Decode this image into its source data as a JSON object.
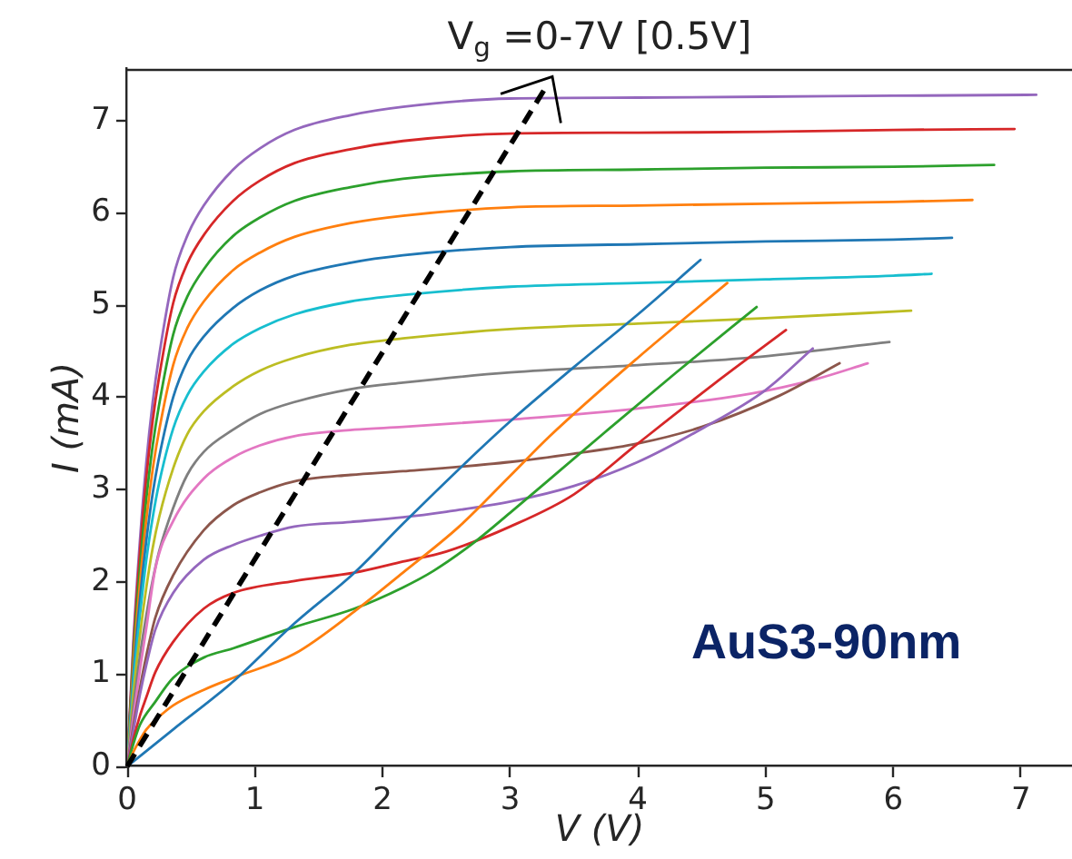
{
  "chart_data": {
    "type": "line",
    "title": "V$_{g}$ =0-7V [0.5V]",
    "xlabel": "V (V)",
    "ylabel": "I (mA)",
    "annotations": [
      "AuS3-90nm"
    ],
    "xlim": [
      0,
      7.4
    ],
    "ylim": [
      0,
      7.56
    ],
    "xticks": [
      0,
      1,
      2,
      3,
      4,
      5,
      6,
      7
    ],
    "yticks": [
      0,
      1,
      2,
      3,
      4,
      5,
      6,
      7
    ],
    "grid": false,
    "legend": false,
    "series": [
      {
        "color": "#1f77b4",
        "x": [
          0,
          0.36,
          0.83,
          1.31,
          1.78,
          2.16,
          2.65,
          3,
          3.5,
          4,
          4.49
        ],
        "values": [
          0,
          0.4,
          0.92,
          1.55,
          2.1,
          2.63,
          3.29,
          3.74,
          4.33,
          4.9,
          5.49
        ]
      },
      {
        "color": "#ff7f0e",
        "x": [
          0,
          0.05,
          0.08,
          0.15,
          0.22,
          0.36,
          0.6,
          0.83,
          1.31,
          1.78,
          2.16,
          2.6,
          3,
          3.31,
          4,
          4.7
        ],
        "values": [
          0,
          0.16,
          0.24,
          0.4,
          0.5,
          0.66,
          0.83,
          0.96,
          1.22,
          1.68,
          2.1,
          2.6,
          3.15,
          3.58,
          4.43,
          5.24
        ]
      },
      {
        "color": "#2ca02c",
        "x": [
          0,
          0.05,
          0.1,
          0.22,
          0.36,
          0.6,
          0.83,
          1.31,
          1.78,
          2.16,
          2.4,
          2.72,
          3,
          3.4,
          3.74,
          4.3,
          4.93
        ],
        "values": [
          0,
          0.25,
          0.45,
          0.7,
          0.96,
          1.18,
          1.28,
          1.51,
          1.71,
          1.94,
          2.12,
          2.43,
          2.75,
          3.22,
          3.62,
          4.27,
          4.98
        ]
      },
      {
        "color": "#d62728",
        "x": [
          0,
          0.05,
          0.1,
          0.15,
          0.22,
          0.36,
          0.6,
          0.83,
          1.31,
          1.78,
          2.16,
          2.5,
          3,
          3.5,
          4,
          4.6,
          5.16
        ],
        "values": [
          0,
          0.3,
          0.55,
          0.75,
          1.02,
          1.35,
          1.71,
          1.88,
          2.01,
          2.1,
          2.22,
          2.33,
          2.6,
          2.95,
          3.5,
          4.15,
          4.73
        ]
      },
      {
        "color": "#9467bd",
        "x": [
          0,
          0.05,
          0.1,
          0.15,
          0.22,
          0.36,
          0.6,
          0.83,
          1.04,
          1.31,
          1.75,
          2.16,
          2.5,
          3,
          3.5,
          4,
          4.5,
          5,
          5.37
        ],
        "values": [
          0,
          0.4,
          0.78,
          1.1,
          1.48,
          1.88,
          2.24,
          2.4,
          2.5,
          2.6,
          2.65,
          2.7,
          2.76,
          2.87,
          3.04,
          3.3,
          3.66,
          4.08,
          4.53
        ]
      },
      {
        "color": "#8c564b",
        "x": [
          0,
          0.05,
          0.1,
          0.15,
          0.22,
          0.36,
          0.6,
          0.83,
          1.04,
          1.31,
          1.75,
          2.16,
          3,
          3.5,
          4,
          4.5,
          5.11,
          5.58
        ],
        "values": [
          0,
          0.45,
          0.85,
          1.2,
          1.61,
          2.07,
          2.56,
          2.83,
          2.97,
          3.09,
          3.16,
          3.2,
          3.3,
          3.39,
          3.5,
          3.68,
          4.02,
          4.37
        ]
      },
      {
        "color": "#e377c2",
        "x": [
          0,
          0.05,
          0.1,
          0.15,
          0.22,
          0.36,
          0.6,
          0.83,
          1.04,
          1.31,
          1.78,
          2.16,
          3,
          4,
          4.88,
          5.4,
          5.8
        ],
        "values": [
          0,
          0.55,
          1.05,
          1.5,
          2.14,
          2.66,
          3.12,
          3.35,
          3.48,
          3.58,
          3.65,
          3.68,
          3.76,
          3.88,
          4.04,
          4.2,
          4.37
        ]
      },
      {
        "color": "#7f7f7f",
        "x": [
          0,
          0.05,
          0.1,
          0.15,
          0.2,
          0.25,
          0.36,
          0.47,
          0.6,
          0.83,
          1.04,
          1.31,
          1.75,
          2.16,
          3,
          4,
          4.88,
          5.97
        ],
        "values": [
          0,
          0.66,
          1.2,
          1.64,
          2.02,
          2.33,
          2.8,
          3.16,
          3.41,
          3.65,
          3.82,
          3.95,
          4.09,
          4.16,
          4.27,
          4.35,
          4.43,
          4.6
        ]
      },
      {
        "color": "#bcbd22",
        "x": [
          0,
          0.05,
          0.1,
          0.15,
          0.2,
          0.25,
          0.36,
          0.47,
          0.6,
          0.83,
          1.04,
          1.31,
          1.75,
          2.16,
          3,
          4,
          5,
          6.14
        ],
        "values": [
          0,
          0.8,
          1.42,
          1.94,
          2.37,
          2.7,
          3.23,
          3.6,
          3.85,
          4.12,
          4.29,
          4.43,
          4.57,
          4.64,
          4.74,
          4.8,
          4.86,
          4.94
        ]
      },
      {
        "color": "#17becf",
        "x": [
          0,
          0.05,
          0.1,
          0.15,
          0.2,
          0.25,
          0.36,
          0.47,
          0.6,
          0.83,
          1.04,
          1.31,
          1.75,
          2.16,
          3,
          4,
          5,
          6,
          6.3
        ],
        "values": [
          0,
          0.93,
          1.64,
          2.24,
          2.7,
          3.07,
          3.66,
          4.02,
          4.28,
          4.58,
          4.75,
          4.9,
          5.04,
          5.11,
          5.2,
          5.24,
          5.28,
          5.32,
          5.34
        ]
      },
      {
        "color": "#1f77b4",
        "x": [
          0,
          0.05,
          0.1,
          0.15,
          0.2,
          0.25,
          0.36,
          0.47,
          0.6,
          0.83,
          1.04,
          1.31,
          1.75,
          2.16,
          3,
          4,
          5,
          6,
          6.46
        ],
        "values": [
          0,
          1.02,
          1.81,
          2.45,
          2.96,
          3.35,
          4.0,
          4.39,
          4.66,
          4.97,
          5.16,
          5.32,
          5.46,
          5.54,
          5.63,
          5.66,
          5.69,
          5.71,
          5.73
        ]
      },
      {
        "color": "#ff7f0e",
        "x": [
          0,
          0.05,
          0.1,
          0.15,
          0.2,
          0.25,
          0.36,
          0.47,
          0.6,
          0.83,
          1.04,
          1.31,
          1.75,
          2.16,
          3,
          4,
          5,
          6,
          6.62
        ],
        "values": [
          0,
          1.13,
          1.98,
          2.68,
          3.22,
          3.64,
          4.35,
          4.75,
          5.04,
          5.38,
          5.57,
          5.74,
          5.89,
          5.97,
          6.06,
          6.08,
          6.1,
          6.12,
          6.14
        ]
      },
      {
        "color": "#2ca02c",
        "x": [
          0,
          0.05,
          0.1,
          0.15,
          0.2,
          0.25,
          0.36,
          0.47,
          0.6,
          0.83,
          1.04,
          1.31,
          1.75,
          2.16,
          3,
          4,
          5,
          6,
          6.79
        ],
        "values": [
          0,
          1.23,
          2.15,
          2.9,
          3.48,
          3.92,
          4.68,
          5.09,
          5.39,
          5.75,
          5.95,
          6.13,
          6.28,
          6.37,
          6.45,
          6.47,
          6.49,
          6.5,
          6.52
        ]
      },
      {
        "color": "#d62728",
        "x": [
          0,
          0.05,
          0.1,
          0.15,
          0.2,
          0.25,
          0.36,
          0.47,
          0.6,
          0.83,
          1.04,
          1.31,
          1.75,
          2.16,
          3,
          4,
          5,
          6,
          6.95
        ],
        "values": [
          0,
          1.32,
          2.32,
          3.13,
          3.75,
          4.22,
          5.02,
          5.45,
          5.76,
          6.13,
          6.35,
          6.54,
          6.69,
          6.78,
          6.86,
          6.87,
          6.88,
          6.9,
          6.91
        ]
      },
      {
        "color": "#9467bd",
        "x": [
          0,
          0.05,
          0.1,
          0.15,
          0.2,
          0.25,
          0.36,
          0.47,
          0.6,
          0.83,
          1.04,
          1.31,
          1.75,
          2.16,
          3,
          4,
          5,
          6,
          7.12
        ],
        "values": [
          0,
          1.4,
          2.45,
          3.3,
          3.95,
          4.45,
          5.3,
          5.75,
          6.08,
          6.47,
          6.7,
          6.9,
          7.06,
          7.15,
          7.24,
          7.25,
          7.26,
          7.27,
          7.28
        ]
      }
    ]
  }
}
